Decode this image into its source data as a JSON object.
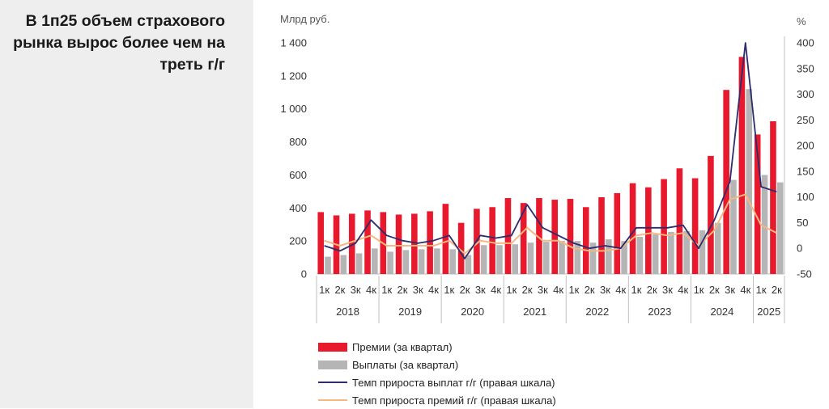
{
  "headline": "В 1п25 объем страхового рынка вырос более чем на треть г/г",
  "chart_data": {
    "type": "bar",
    "left_axis_unit": "Млрд руб.",
    "right_axis_unit": "%",
    "ylim_left": [
      0,
      1400
    ],
    "ylim_right": [
      -50,
      400
    ],
    "yticks_left": [
      "0",
      "200",
      "400",
      "600",
      "800",
      "1 000",
      "1 200",
      "1 400"
    ],
    "yticks_right": [
      "-50",
      "0",
      "50",
      "100",
      "150",
      "200",
      "250",
      "300",
      "350",
      "400"
    ],
    "categories": [
      "1к",
      "2к",
      "3к",
      "4к",
      "1к",
      "2к",
      "3к",
      "4к",
      "1к",
      "2к",
      "3к",
      "4к",
      "1к",
      "2к",
      "3к",
      "4к",
      "1к",
      "2к",
      "3к",
      "4к",
      "1к",
      "2к",
      "3к",
      "4к",
      "1к",
      "2к",
      "3к",
      "4к",
      "1к",
      "2к"
    ],
    "years": [
      {
        "label": "2018",
        "count": 4
      },
      {
        "label": "2019",
        "count": 4
      },
      {
        "label": "2020",
        "count": 4
      },
      {
        "label": "2021",
        "count": 4
      },
      {
        "label": "2022",
        "count": 4
      },
      {
        "label": "2023",
        "count": 4
      },
      {
        "label": "2024",
        "count": 4
      },
      {
        "label": "2025",
        "count": 2
      }
    ],
    "series": [
      {
        "name": "Премии (за квартал)",
        "kind": "bar",
        "axis": "left",
        "color": "#e8192c",
        "values": [
          375,
          355,
          365,
          385,
          375,
          360,
          365,
          380,
          425,
          310,
          395,
          405,
          460,
          430,
          460,
          450,
          455,
          405,
          465,
          490,
          550,
          525,
          575,
          640,
          580,
          715,
          1115,
          1315,
          845,
          925
        ]
      },
      {
        "name": "Выплаты (за квартал)",
        "kind": "bar",
        "axis": "left",
        "color": "#b5b5b5",
        "values": [
          105,
          115,
          125,
          155,
          135,
          145,
          150,
          155,
          150,
          115,
          175,
          175,
          180,
          190,
          195,
          200,
          200,
          190,
          210,
          200,
          225,
          240,
          255,
          260,
          265,
          310,
          570,
          1120,
          600,
          555
        ]
      },
      {
        "name": "Темп прироста выплат г/г (правая шкала)",
        "kind": "line",
        "axis": "right",
        "color": "#2c2c6e",
        "values": [
          5,
          -5,
          10,
          55,
          25,
          15,
          10,
          15,
          25,
          -20,
          25,
          20,
          25,
          85,
          40,
          25,
          10,
          0,
          5,
          0,
          40,
          40,
          40,
          45,
          0,
          55,
          130,
          400,
          120,
          110
        ]
      },
      {
        "name": "Темп прироста премий г/г (правая шкала)",
        "kind": "line",
        "axis": "right",
        "color": "#f5b980",
        "values": [
          15,
          5,
          15,
          25,
          5,
          5,
          5,
          5,
          15,
          -10,
          15,
          10,
          10,
          40,
          15,
          15,
          0,
          -5,
          -5,
          0,
          25,
          30,
          25,
          30,
          5,
          35,
          95,
          105,
          45,
          30
        ]
      }
    ]
  }
}
